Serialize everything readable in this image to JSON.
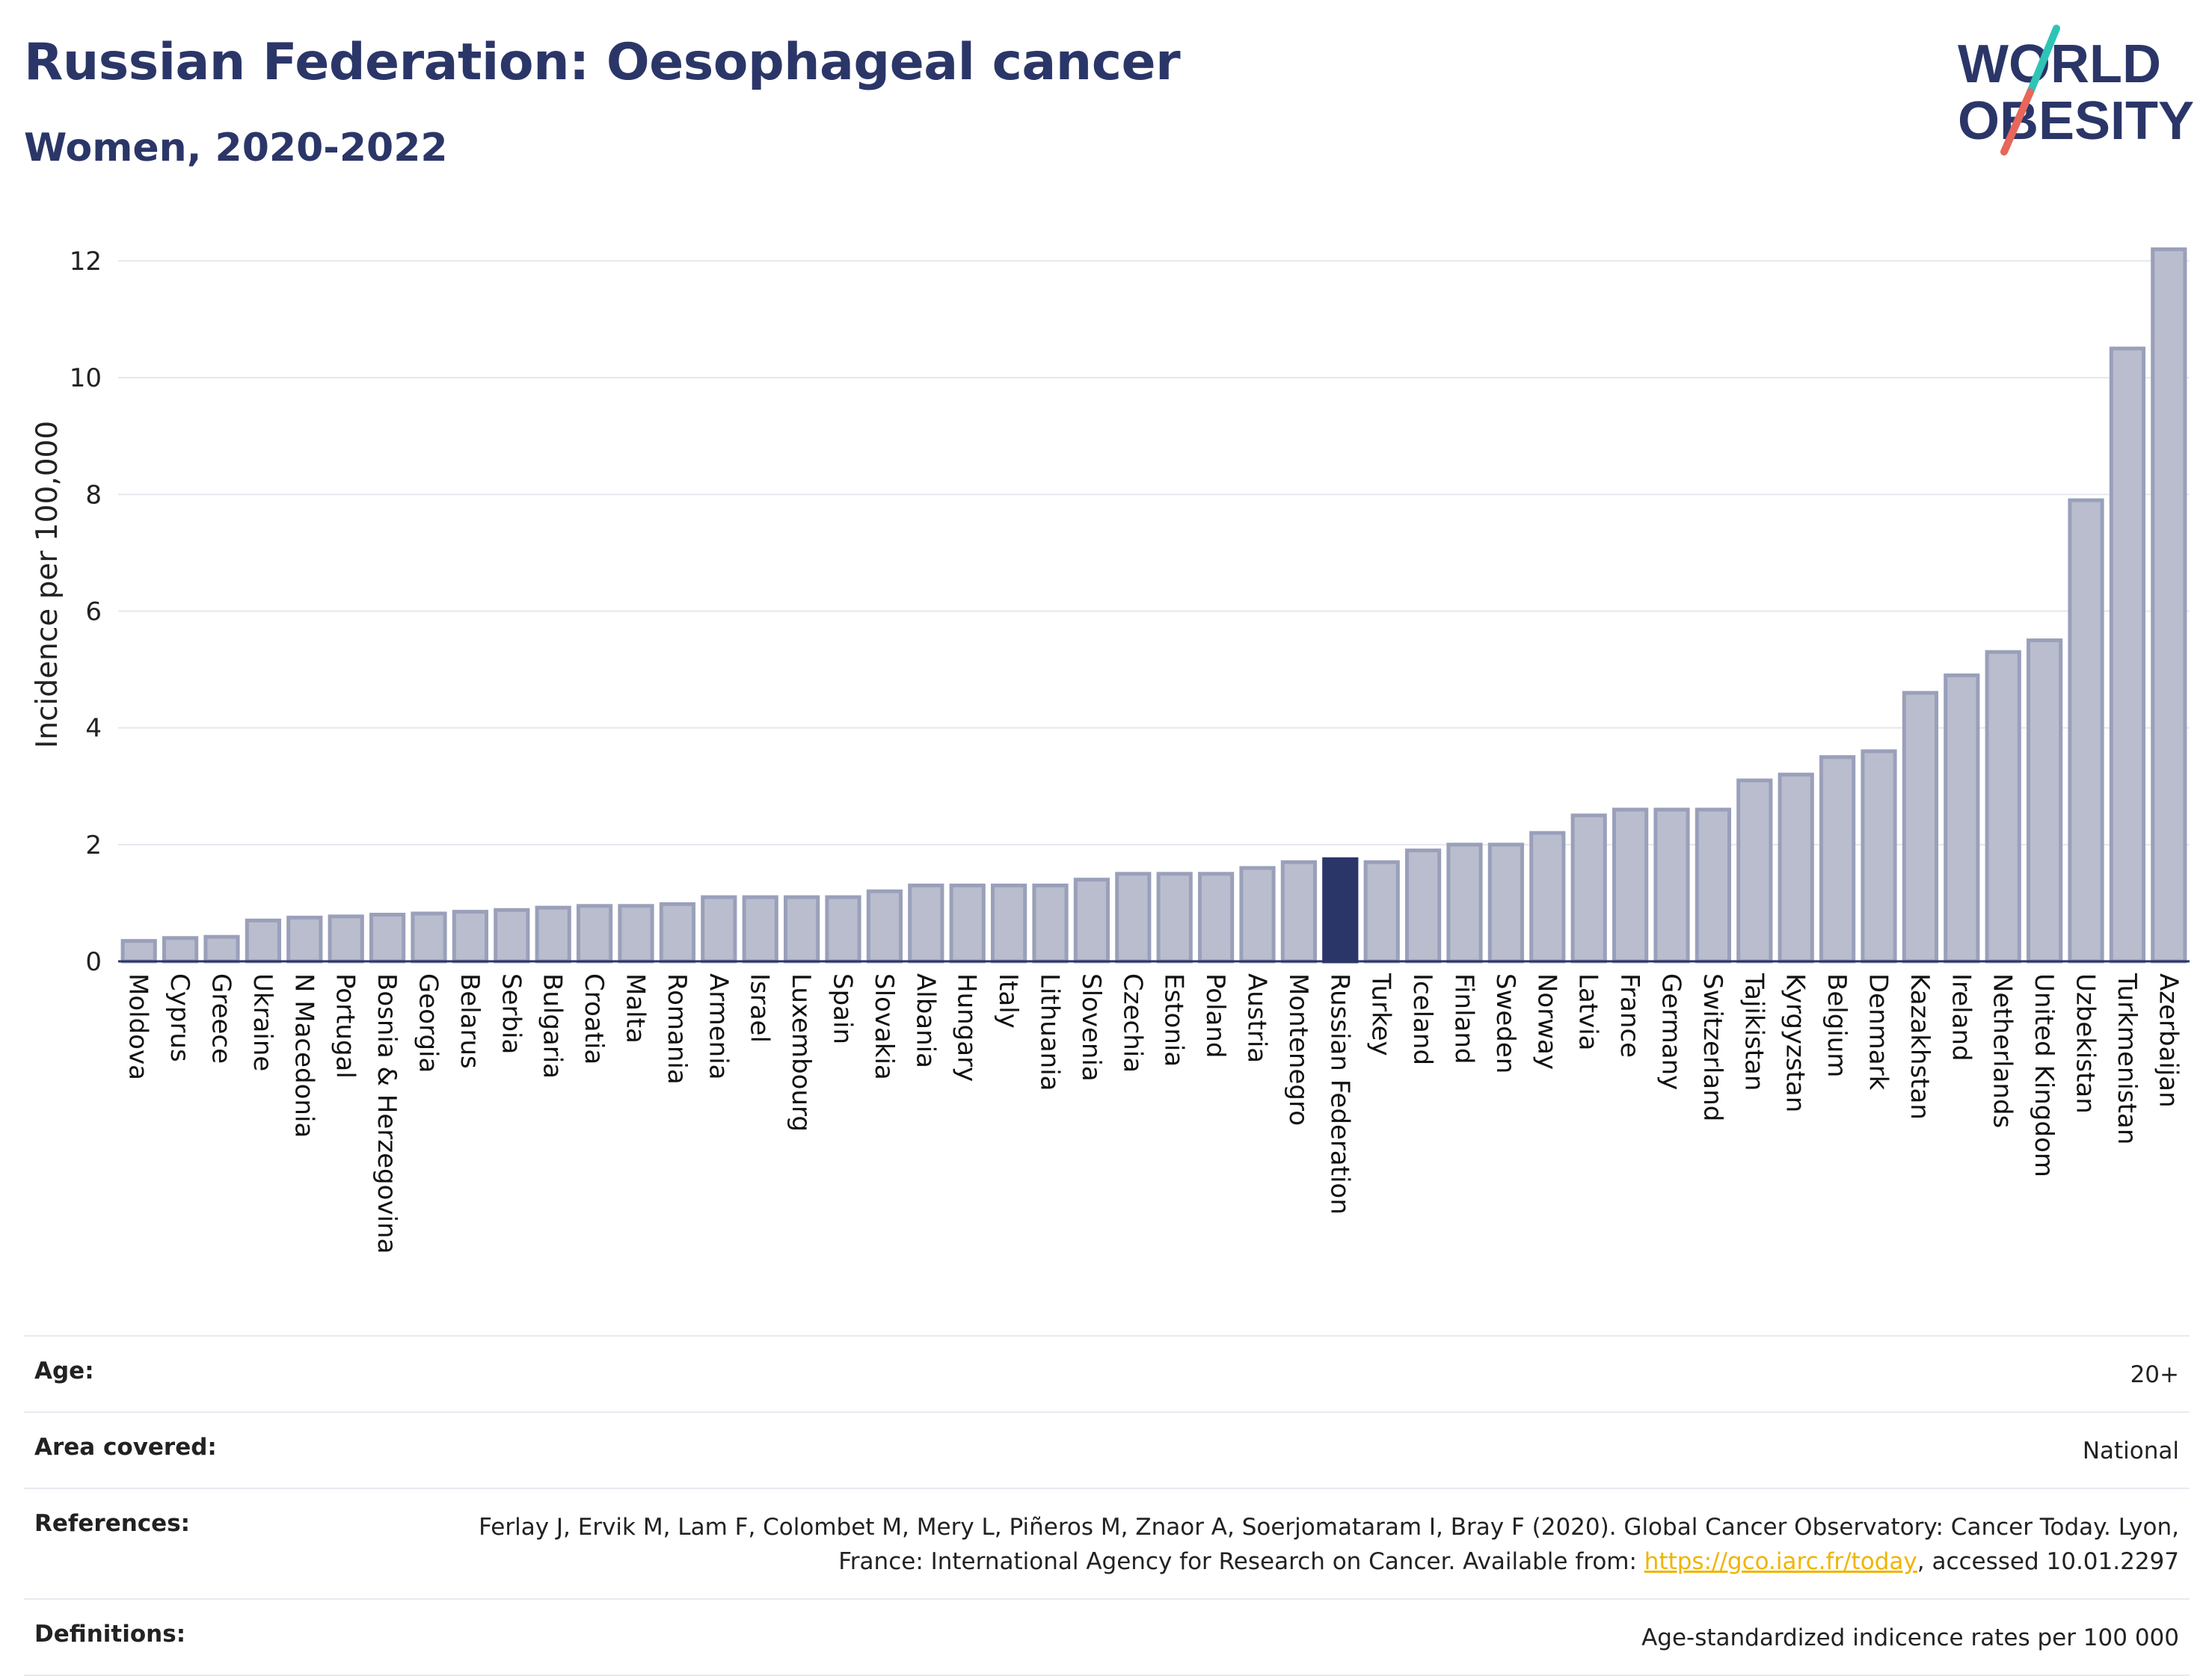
{
  "header": {
    "title": "Russian Federation: Oesophageal cancer",
    "subtitle": "Women, 2020-2022"
  },
  "logo": {
    "line1": "WORLD",
    "line2": "OBESITY",
    "colors": {
      "text": "#2b3668",
      "slash_top": "#2ec4b6",
      "slash_bottom": "#e8665a"
    }
  },
  "chart_data": {
    "type": "bar",
    "ylabel": "Incidence per 100,000",
    "xlabel": "",
    "ylim": [
      0,
      12.5
    ],
    "yticks": [
      0,
      2,
      4,
      6,
      8,
      10,
      12
    ],
    "grid": true,
    "highlight": "Russian Federation",
    "colors": {
      "bar": "#b9bdcd",
      "bar_stroke": "#9aa0ba",
      "highlight": "#2b3668"
    },
    "categories": [
      "Moldova",
      "Cyprus",
      "Greece",
      "Ukraine",
      "N Macedonia",
      "Portugal",
      "Bosnia & Herzegovina",
      "Georgia",
      "Belarus",
      "Serbia",
      "Bulgaria",
      "Croatia",
      "Malta",
      "Romania",
      "Armenia",
      "Israel",
      "Luxembourg",
      "Spain",
      "Slovakia",
      "Albania",
      "Hungary",
      "Italy",
      "Lithuania",
      "Slovenia",
      "Czechia",
      "Estonia",
      "Poland",
      "Austria",
      "Montenegro",
      "Russian Federation",
      "Turkey",
      "Iceland",
      "Finland",
      "Sweden",
      "Norway",
      "Latvia",
      "France",
      "Germany",
      "Switzerland",
      "Tajikistan",
      "Kyrgyzstan",
      "Belgium",
      "Denmark",
      "Kazakhstan",
      "Ireland",
      "Netherlands",
      "United Kingdom",
      "Uzbekistan",
      "Turkmenistan",
      "Azerbaijan"
    ],
    "values": [
      0.35,
      0.4,
      0.42,
      0.7,
      0.75,
      0.77,
      0.8,
      0.82,
      0.85,
      0.88,
      0.92,
      0.95,
      0.95,
      0.98,
      1.1,
      1.1,
      1.1,
      1.1,
      1.2,
      1.3,
      1.3,
      1.3,
      1.3,
      1.4,
      1.5,
      1.5,
      1.5,
      1.6,
      1.7,
      1.75,
      1.7,
      1.9,
      2.0,
      2.0,
      2.2,
      2.5,
      2.6,
      2.6,
      2.6,
      3.1,
      3.2,
      3.5,
      3.6,
      4.6,
      4.9,
      5.3,
      5.5,
      7.9,
      10.5,
      12.2
    ]
  },
  "info": {
    "rows": [
      {
        "label": "Age:",
        "value": "20+"
      },
      {
        "label": "Area covered:",
        "value": "National"
      },
      {
        "label": "References:",
        "value": "Ferlay J, Ervik M, Lam F, Colombet M, Mery L, Piñeros M, Znaor A, Soerjomataram I, Bray F (2020). Global Cancer Observatory: Cancer Today. Lyon, France: International Agency for Research on Cancer. Available from: ",
        "link": "https://gco.iarc.fr/today",
        "suffix": ", accessed 10.01.2297"
      },
      {
        "label": "Definitions:",
        "value": "Age-standardized indicence rates per 100 000"
      }
    ]
  }
}
